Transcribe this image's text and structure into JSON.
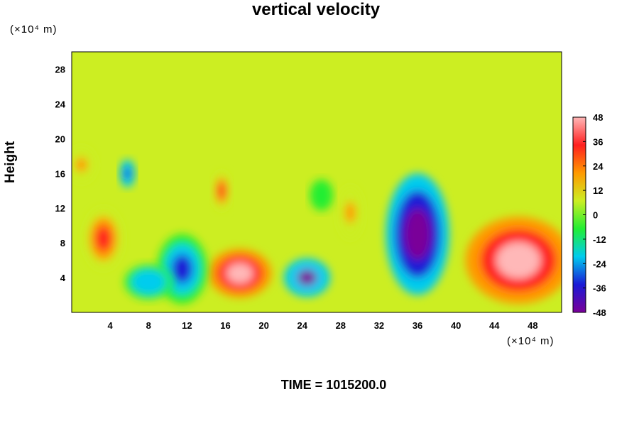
{
  "chart_data": {
    "type": "heatmap",
    "title": "vertical velocity",
    "ylabel": "Height",
    "y_unit": "(×10⁴ m)",
    "x_unit": "(×10⁴ m)",
    "footer": "TIME = 1015200.0",
    "xlim": [
      0,
      51
    ],
    "ylim": [
      0,
      30
    ],
    "x_ticks": [
      4,
      8,
      12,
      16,
      20,
      24,
      28,
      32,
      36,
      40,
      44,
      48
    ],
    "y_ticks": [
      4,
      8,
      12,
      16,
      20,
      24,
      28
    ],
    "colorbar": {
      "min": -48,
      "max": 48,
      "ticks": [
        48,
        36,
        24,
        12,
        0,
        -12,
        -24,
        -36,
        -48
      ],
      "colors": [
        "#7a0099",
        "#1a1ad6",
        "#00ccee",
        "#22ee33",
        "#ccee22",
        "#ff9900",
        "#ff1f1f",
        "#ffb8b8"
      ]
    },
    "background_value": 0,
    "features": [
      {
        "x": 46.5,
        "y": 6,
        "rx": 5.5,
        "ry": 5,
        "value": 46
      },
      {
        "x": 17.5,
        "y": 4.5,
        "rx": 3.3,
        "ry": 2.8,
        "value": 44
      },
      {
        "x": 3.3,
        "y": 8.5,
        "rx": 2,
        "ry": 3.5,
        "value": 38
      },
      {
        "x": 15.6,
        "y": 14,
        "rx": 0.9,
        "ry": 2.2,
        "value": 32
      },
      {
        "x": 29,
        "y": 11.5,
        "rx": 1.3,
        "ry": 3,
        "value": 20
      },
      {
        "x": 1,
        "y": 17,
        "rx": 1.5,
        "ry": 2,
        "value": 16
      },
      {
        "x": 36,
        "y": 9,
        "rx": 3.3,
        "ry": 7,
        "value": -48
      },
      {
        "x": 24.5,
        "y": 4,
        "rx": 2.4,
        "ry": 2.2,
        "value": -42
      },
      {
        "x": 11.5,
        "y": 5,
        "rx": 2.6,
        "ry": 4,
        "value": -36
      },
      {
        "x": 8,
        "y": 3.5,
        "rx": 2.5,
        "ry": 2,
        "value": -24
      },
      {
        "x": 5.8,
        "y": 16,
        "rx": 0.8,
        "ry": 1.6,
        "value": -40
      },
      {
        "x": 26,
        "y": 13.5,
        "rx": 1.2,
        "ry": 1.8,
        "value": -12
      }
    ]
  }
}
